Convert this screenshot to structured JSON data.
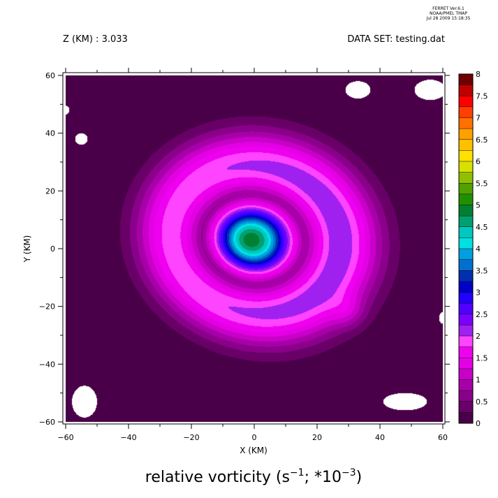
{
  "header": {
    "program_line1": "FERRET  Ver.6.1",
    "program_line2": "NOAA/PMEL TMAP",
    "program_line3": "Jul 28 2009 15:18:35",
    "z_label": "Z (KM) : 3.033",
    "dataset_label": "DATA SET: testing.dat"
  },
  "caption": {
    "prefix": "relative vorticity (s",
    "sup1": "−1",
    "middle": "; *10",
    "sup2": "−3",
    "suffix": ")"
  },
  "chart_data": {
    "type": "heatmap",
    "xlabel": "X (KM)",
    "ylabel": "Y (KM)",
    "xlim": [
      -60,
      60
    ],
    "ylim": [
      -60,
      60
    ],
    "x_ticks": [
      -60,
      -40,
      -20,
      0,
      20,
      40,
      60
    ],
    "x_tick_labels": [
      "−60",
      "−40",
      "−20",
      "0",
      "20",
      "40",
      "60"
    ],
    "y_ticks": [
      -60,
      -40,
      -20,
      0,
      20,
      40,
      60
    ],
    "y_tick_labels": [
      "−60",
      "−40",
      "−20",
      "0",
      "20",
      "40",
      "60"
    ],
    "x_minor_step": 10,
    "y_minor_step": 10,
    "contour_levels": [
      0,
      0.25,
      0.5,
      0.75,
      1,
      1.25,
      1.5,
      1.75,
      2,
      2.25,
      2.5,
      2.75,
      3,
      3.25,
      3.5,
      3.75,
      4,
      4.25,
      4.5,
      4.75,
      5,
      5.25,
      5.5,
      5.75,
      6,
      6.25,
      6.5,
      6.75,
      7,
      7.25,
      7.5,
      7.75,
      8
    ],
    "colorbar_labels": [
      "0",
      "0.5",
      "1",
      "1.5",
      "2",
      "2.5",
      "3",
      "3.5",
      "4",
      "4.5",
      "5",
      "5.5",
      "6",
      "6.5",
      "7",
      "7.5",
      "8"
    ],
    "colorbar_values": [
      0,
      0.5,
      1,
      1.5,
      2,
      2.5,
      3,
      3.5,
      4,
      4.5,
      5,
      5.5,
      6,
      6.5,
      7,
      7.5,
      8
    ],
    "colors": [
      "#4a0048",
      "#680068",
      "#8a008a",
      "#a800a8",
      "#c800c8",
      "#e400e4",
      "#f000f0",
      "#ff44ff",
      "#a020f0",
      "#7a00ff",
      "#5000ff",
      "#2000ff",
      "#0000c8",
      "#0030b0",
      "#0070d0",
      "#00a0e0",
      "#00e0e0",
      "#00c8c0",
      "#00a070",
      "#008030",
      "#209000",
      "#50a000",
      "#90c000",
      "#d8e000",
      "#ffe000",
      "#ffc000",
      "#ffa000",
      "#ff7000",
      "#ff4000",
      "#ff0000",
      "#c00000",
      "#700000"
    ],
    "vortex": {
      "center_x": -1,
      "center_y": 3,
      "peak_value": 4.9,
      "ring_max_value": 2.2,
      "ring_radius_km": 26,
      "ring_width_km": 5,
      "core_radius_km": 12,
      "background_value": 0.12
    },
    "missing_regions": [
      {
        "x": 33,
        "y": 55,
        "rx": 4,
        "ry": 3
      },
      {
        "x": 56,
        "y": 55,
        "rx": 5,
        "ry": 3.5
      },
      {
        "x": -55,
        "y": 38,
        "rx": 2,
        "ry": 2
      },
      {
        "x": -60,
        "y": 48,
        "rx": 1.2,
        "ry": 1.5
      },
      {
        "x": -54,
        "y": -53,
        "rx": 4,
        "ry": 5.5
      },
      {
        "x": 48,
        "y": -53,
        "rx": 7,
        "ry": 3
      },
      {
        "x": 60,
        "y": -24,
        "rx": 1.2,
        "ry": 2
      }
    ]
  }
}
